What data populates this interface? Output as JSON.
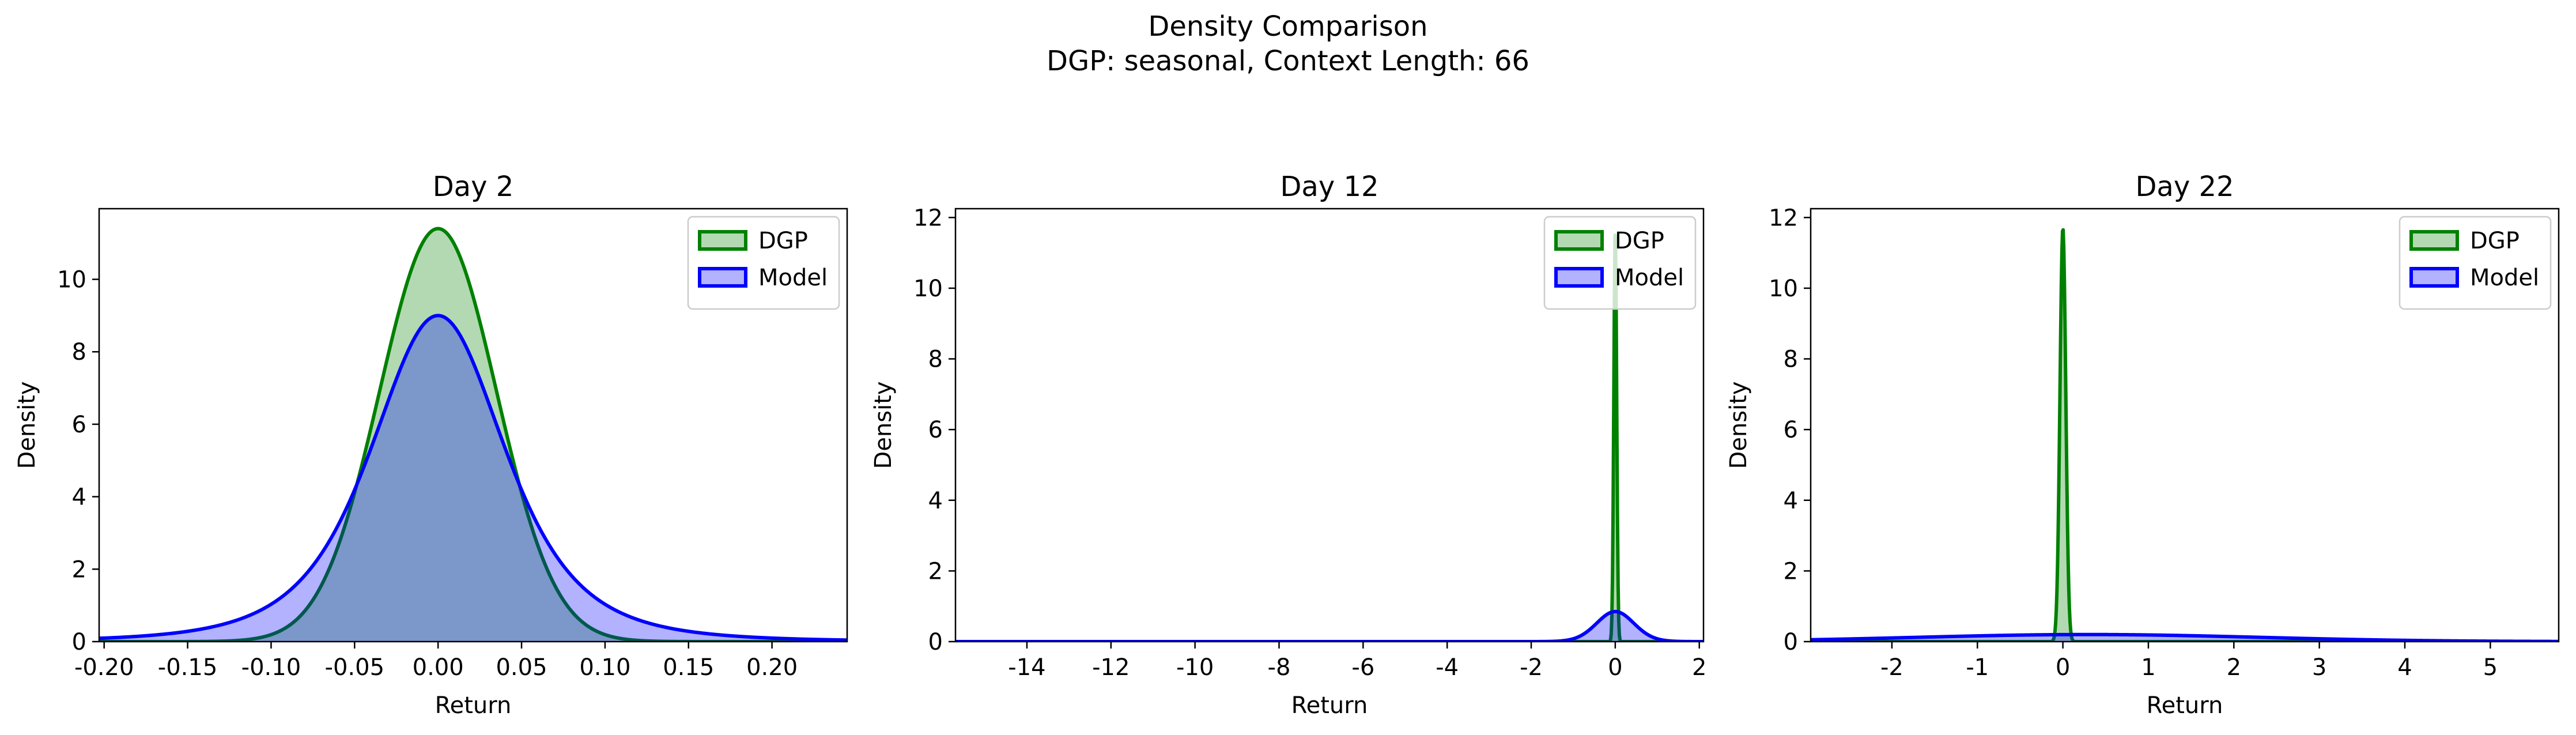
{
  "figure": {
    "title": "Density Comparison",
    "subtitle": "DGP: seasonal, Context Length: 66"
  },
  "colors": {
    "dgp_line": "#008000",
    "dgp_fill": "#008000",
    "model_line": "#0000ff",
    "model_fill": "#0000ff"
  },
  "chart_data": [
    {
      "type": "area",
      "title": "Day 2",
      "xlabel": "Return",
      "ylabel": "Density",
      "xlim": [
        -0.203,
        0.245
      ],
      "ylim": [
        0,
        11.95
      ],
      "xticks": [
        -0.2,
        -0.15,
        -0.1,
        -0.05,
        0.0,
        0.05,
        0.1,
        0.15,
        0.2
      ],
      "xtick_labels": [
        "-0.20",
        "-0.15",
        "-0.10",
        "-0.05",
        "0.00",
        "0.05",
        "0.10",
        "0.15",
        "0.20"
      ],
      "yticks": [
        0,
        2,
        4,
        6,
        8,
        10
      ],
      "grid": false,
      "legend": {
        "position": "upper right",
        "entries": [
          "DGP",
          "Model"
        ]
      },
      "series": [
        {
          "name": "DGP",
          "distribution": "normal",
          "mean": 0.0,
          "std": 0.035,
          "peak": 11.4
        },
        {
          "name": "Model",
          "distribution": "student-t",
          "mean": 0.0,
          "scale": 0.042,
          "df": 3.5,
          "peak": 9.0
        }
      ]
    },
    {
      "type": "area",
      "title": "Day 12",
      "xlabel": "Return",
      "ylabel": "Density",
      "xlim": [
        -15.7,
        2.1
      ],
      "ylim": [
        0,
        12.25
      ],
      "xticks": [
        -14,
        -12,
        -10,
        -8,
        -6,
        -4,
        -2,
        0,
        2
      ],
      "xtick_labels": [
        "-14",
        "-12",
        "-10",
        "-8",
        "-6",
        "-4",
        "-2",
        "0",
        "2"
      ],
      "yticks": [
        0,
        2,
        4,
        6,
        8,
        10,
        12
      ],
      "grid": false,
      "legend": {
        "position": "upper right",
        "entries": [
          "DGP",
          "Model"
        ]
      },
      "series": [
        {
          "name": "DGP",
          "distribution": "normal",
          "mean": 0.0,
          "std": 0.034,
          "peak": 11.7
        },
        {
          "name": "Model",
          "distribution": "student-t",
          "mean": 0.0,
          "scale": 0.45,
          "df": 30,
          "peak": 0.85
        }
      ]
    },
    {
      "type": "area",
      "title": "Day 22",
      "xlabel": "Return",
      "ylabel": "Density",
      "xlim": [
        -2.95,
        5.8
      ],
      "ylim": [
        0,
        12.25
      ],
      "xticks": [
        -2,
        -1,
        0,
        1,
        2,
        3,
        4,
        5
      ],
      "xtick_labels": [
        "-2",
        "-1",
        "0",
        "1",
        "2",
        "3",
        "4",
        "5"
      ],
      "yticks": [
        0,
        2,
        4,
        6,
        8,
        10,
        12
      ],
      "grid": false,
      "legend": {
        "position": "upper right",
        "entries": [
          "DGP",
          "Model"
        ]
      },
      "series": [
        {
          "name": "DGP",
          "distribution": "normal",
          "mean": 0.0,
          "std": 0.034,
          "peak": 11.7
        },
        {
          "name": "Model",
          "distribution": "normal",
          "mean": 0.3,
          "std": 2.0,
          "peak": 0.2
        }
      ]
    }
  ]
}
